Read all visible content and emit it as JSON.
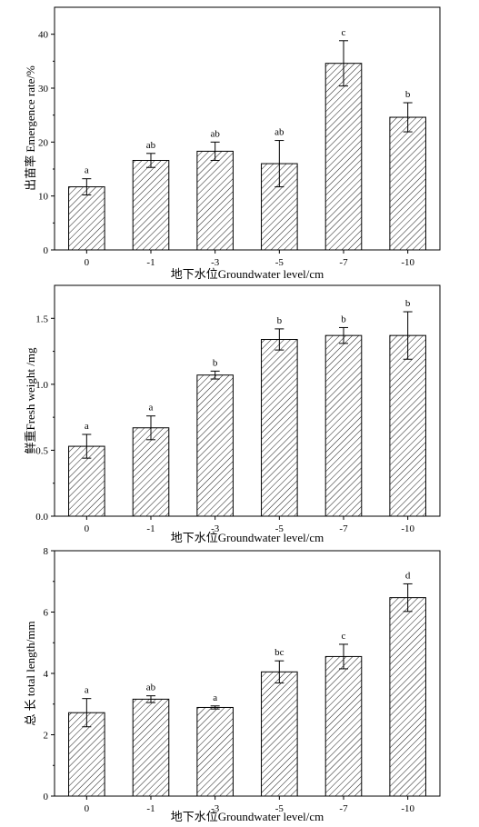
{
  "chart_data": [
    {
      "type": "bar",
      "categories": [
        "0",
        "-1",
        "-3",
        "-5",
        "-7",
        "-10"
      ],
      "values": [
        11.7,
        16.6,
        18.3,
        16.0,
        34.6,
        24.6
      ],
      "errors": [
        1.5,
        1.3,
        1.7,
        4.3,
        4.2,
        2.7
      ],
      "significance": [
        "a",
        "ab",
        "ab",
        "ab",
        "c",
        "b"
      ],
      "ylim": [
        0,
        45
      ],
      "yticks": [
        0,
        10,
        20,
        30,
        40
      ],
      "ytick_labels": [
        "0",
        "10",
        "20",
        "30",
        "40"
      ],
      "xlabel": "地下水位Groundwater level/cm",
      "ylabel": "出苗率 Emergence rate/%"
    },
    {
      "type": "bar",
      "categories": [
        "0",
        "-1",
        "-3",
        "-5",
        "-7",
        "-10"
      ],
      "values": [
        0.53,
        0.67,
        1.07,
        1.34,
        1.37,
        1.37
      ],
      "errors": [
        0.09,
        0.09,
        0.03,
        0.08,
        0.06,
        0.18
      ],
      "significance": [
        "a",
        "a",
        "b",
        "b",
        "b",
        "b"
      ],
      "ylim": [
        0,
        1.75
      ],
      "yticks": [
        0,
        0.5,
        1.0,
        1.5
      ],
      "ytick_labels": [
        "0.0",
        "0.5",
        "1.0",
        "1.5"
      ],
      "xlabel": "地下水位Groundwater level/cm",
      "ylabel": "鲜重Fresh weight /mg"
    },
    {
      "type": "bar",
      "categories": [
        "0",
        "-1",
        "-3",
        "-5",
        "-7",
        "-10"
      ],
      "values": [
        2.72,
        3.16,
        2.89,
        4.05,
        4.55,
        6.47
      ],
      "errors": [
        0.46,
        0.11,
        0.05,
        0.36,
        0.4,
        0.45
      ],
      "significance": [
        "a",
        "ab",
        "a",
        "bc",
        "c",
        "d"
      ],
      "ylim": [
        0,
        8
      ],
      "yticks": [
        0,
        2,
        4,
        6,
        8
      ],
      "ytick_labels": [
        "0",
        "2",
        "4",
        "6",
        "8"
      ],
      "xlabel": "地下水位Groundwater level/cm",
      "ylabel": "总 长 total length/mm"
    }
  ],
  "style": {
    "bar_fill": "hatched",
    "line_color": "#000000",
    "background": "#ffffff"
  }
}
